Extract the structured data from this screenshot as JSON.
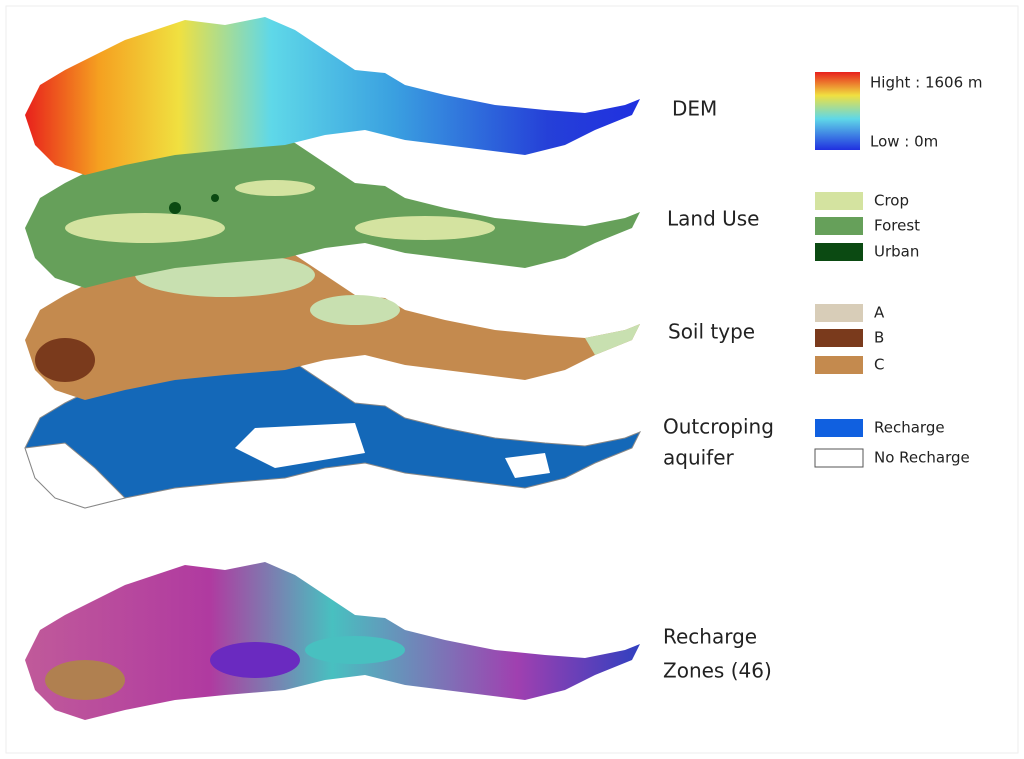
{
  "layers": [
    {
      "label": [
        "DEM"
      ],
      "legend": [
        {
          "label": "Hight : 1606 m",
          "color": "#e8201c"
        },
        {
          "label": "Low : 0m",
          "color": "#2030e0"
        }
      ]
    },
    {
      "label": [
        "Land Use"
      ],
      "legend": [
        {
          "label": "Crop",
          "color": "#d4e3a0"
        },
        {
          "label": "Forest",
          "color": "#66a05a"
        },
        {
          "label": "Urban",
          "color": "#0b4a12"
        }
      ]
    },
    {
      "label": [
        "Soil type"
      ],
      "legend": [
        {
          "label": "A",
          "color": "#d8cdb8"
        },
        {
          "label": "B",
          "color": "#7a3a1c"
        },
        {
          "label": "C",
          "color": "#c48a4e"
        }
      ]
    },
    {
      "label": [
        "Outcroping",
        "aquifer"
      ],
      "legend": [
        {
          "label": "Recharge",
          "color": "#1060e0"
        },
        {
          "label": "No Recharge",
          "color": "#ffffff"
        }
      ]
    },
    {
      "label": [
        "Recharge",
        "Zones (46)"
      ],
      "legend": []
    }
  ]
}
